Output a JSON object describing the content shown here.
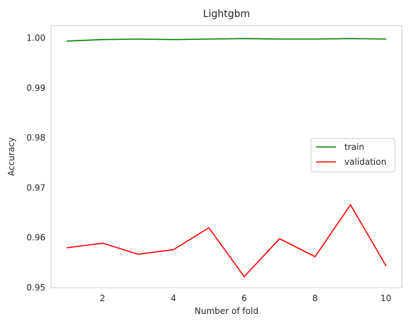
{
  "chart_data": {
    "type": "line",
    "title": "Lightgbm",
    "xlabel": "Number of fold",
    "ylabel": "Accuracy",
    "x": [
      1,
      2,
      3,
      4,
      5,
      6,
      7,
      8,
      9,
      10
    ],
    "xlim": [
      0.55,
      10.45
    ],
    "ylim": [
      0.95,
      1.0025
    ],
    "xticks": [
      2,
      4,
      6,
      8,
      10
    ],
    "yticks": [
      0.95,
      0.96,
      0.97,
      0.98,
      0.99,
      1.0
    ],
    "ytick_labels": [
      "0.95",
      "0.96",
      "0.97",
      "0.98",
      "0.99",
      "1.00"
    ],
    "grid": false,
    "legend_position": "center-right",
    "series": [
      {
        "name": "train",
        "color": "#008000",
        "values": [
          0.9994,
          0.9997,
          0.9998,
          0.9997,
          0.9998,
          0.9999,
          0.9998,
          0.9998,
          0.9999,
          0.9998
        ]
      },
      {
        "name": "validation",
        "color": "#ff0000",
        "values": [
          0.958,
          0.9589,
          0.9567,
          0.9576,
          0.962,
          0.9522,
          0.9598,
          0.9562,
          0.9666,
          0.9544
        ]
      }
    ],
    "spine_color": "#cccccc"
  }
}
